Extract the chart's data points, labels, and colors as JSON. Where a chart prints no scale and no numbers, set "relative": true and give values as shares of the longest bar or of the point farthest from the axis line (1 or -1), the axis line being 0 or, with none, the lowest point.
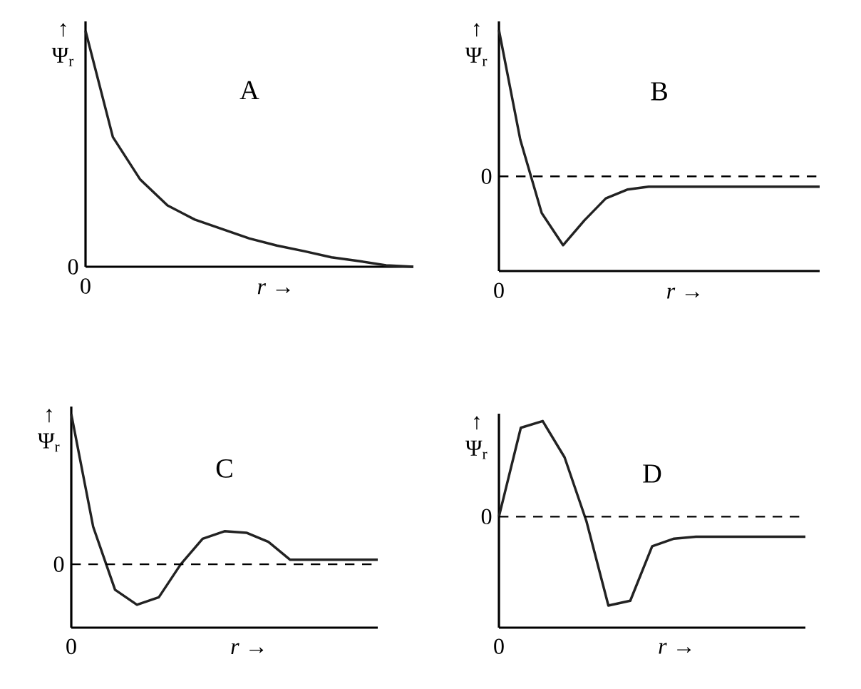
{
  "chart_data": [
    {
      "type": "line",
      "title": "A",
      "xlabel": "*r* →",
      "ylabel": "↑ Ψ$_{r}$",
      "relative": true,
      "color": "#222222",
      "annotations": [
        "0",
        "0"
      ],
      "categories": [
        null,
        null,
        null,
        null,
        null,
        null,
        null,
        null,
        null,
        null,
        null,
        null,
        null
      ],
      "values": [
        1.0,
        0.55,
        0.37,
        0.26,
        0.2,
        0.16,
        0.12,
        0.09,
        0.066,
        0.04,
        0.024,
        0.006,
        0
      ]
    },
    {
      "type": "line",
      "title": "B",
      "xlabel": "*r* →",
      "ylabel": "↑ Ψ$_{r}$",
      "relative": true,
      "color": "#222222",
      "annotations": [
        "0"
      ],
      "ref_lines": [
        {
          "axis": "y",
          "value": 0,
          "label": "0",
          "line_style": "dashed"
        }
      ],
      "categories": [
        null,
        null,
        null,
        null,
        null,
        null,
        null,
        null,
        null,
        null,
        null,
        null,
        null,
        null,
        null,
        null
      ],
      "values": [
        1.0,
        0.25,
        -0.25,
        -0.47,
        -0.3,
        -0.15,
        -0.09,
        -0.07,
        -0.07,
        -0.07,
        -0.07,
        -0.07,
        -0.07,
        -0.07,
        -0.07,
        -0.07
      ]
    },
    {
      "type": "line",
      "title": "C",
      "xlabel": "*r* →",
      "ylabel": "↑ Ψ$_{r}$",
      "relative": true,
      "color": "#222222",
      "annotations": [
        "0"
      ],
      "ref_lines": [
        {
          "axis": "y",
          "value": 0,
          "label": "0",
          "line_style": "dashed"
        }
      ],
      "categories": [
        null,
        null,
        null,
        null,
        null,
        null,
        null,
        null,
        null,
        null,
        null,
        null,
        null,
        null,
        null
      ],
      "values": [
        1.0,
        0.25,
        -0.17,
        -0.27,
        -0.22,
        0.0,
        0.17,
        0.22,
        0.21,
        0.15,
        0.03,
        0.03,
        0.03,
        0.03,
        0.03
      ]
    },
    {
      "type": "line",
      "title": "D",
      "xlabel": "*r* →",
      "ylabel": "↑ Ψ$_{r}$",
      "relative": true,
      "color": "#222222",
      "annotations": [
        "0"
      ],
      "ref_lines": [
        {
          "axis": "y",
          "value": 0,
          "label": "0",
          "line_style": "dashed"
        }
      ],
      "categories": [
        null,
        null,
        null,
        null,
        null,
        null,
        null,
        null,
        null,
        null,
        null,
        null,
        null,
        null,
        null
      ],
      "values": [
        0,
        0.93,
        1.0,
        0.62,
        -0.05,
        -0.93,
        -0.88,
        -0.31,
        -0.23,
        -0.21,
        -0.21,
        -0.21,
        -0.21,
        -0.21,
        -0.21
      ]
    }
  ]
}
